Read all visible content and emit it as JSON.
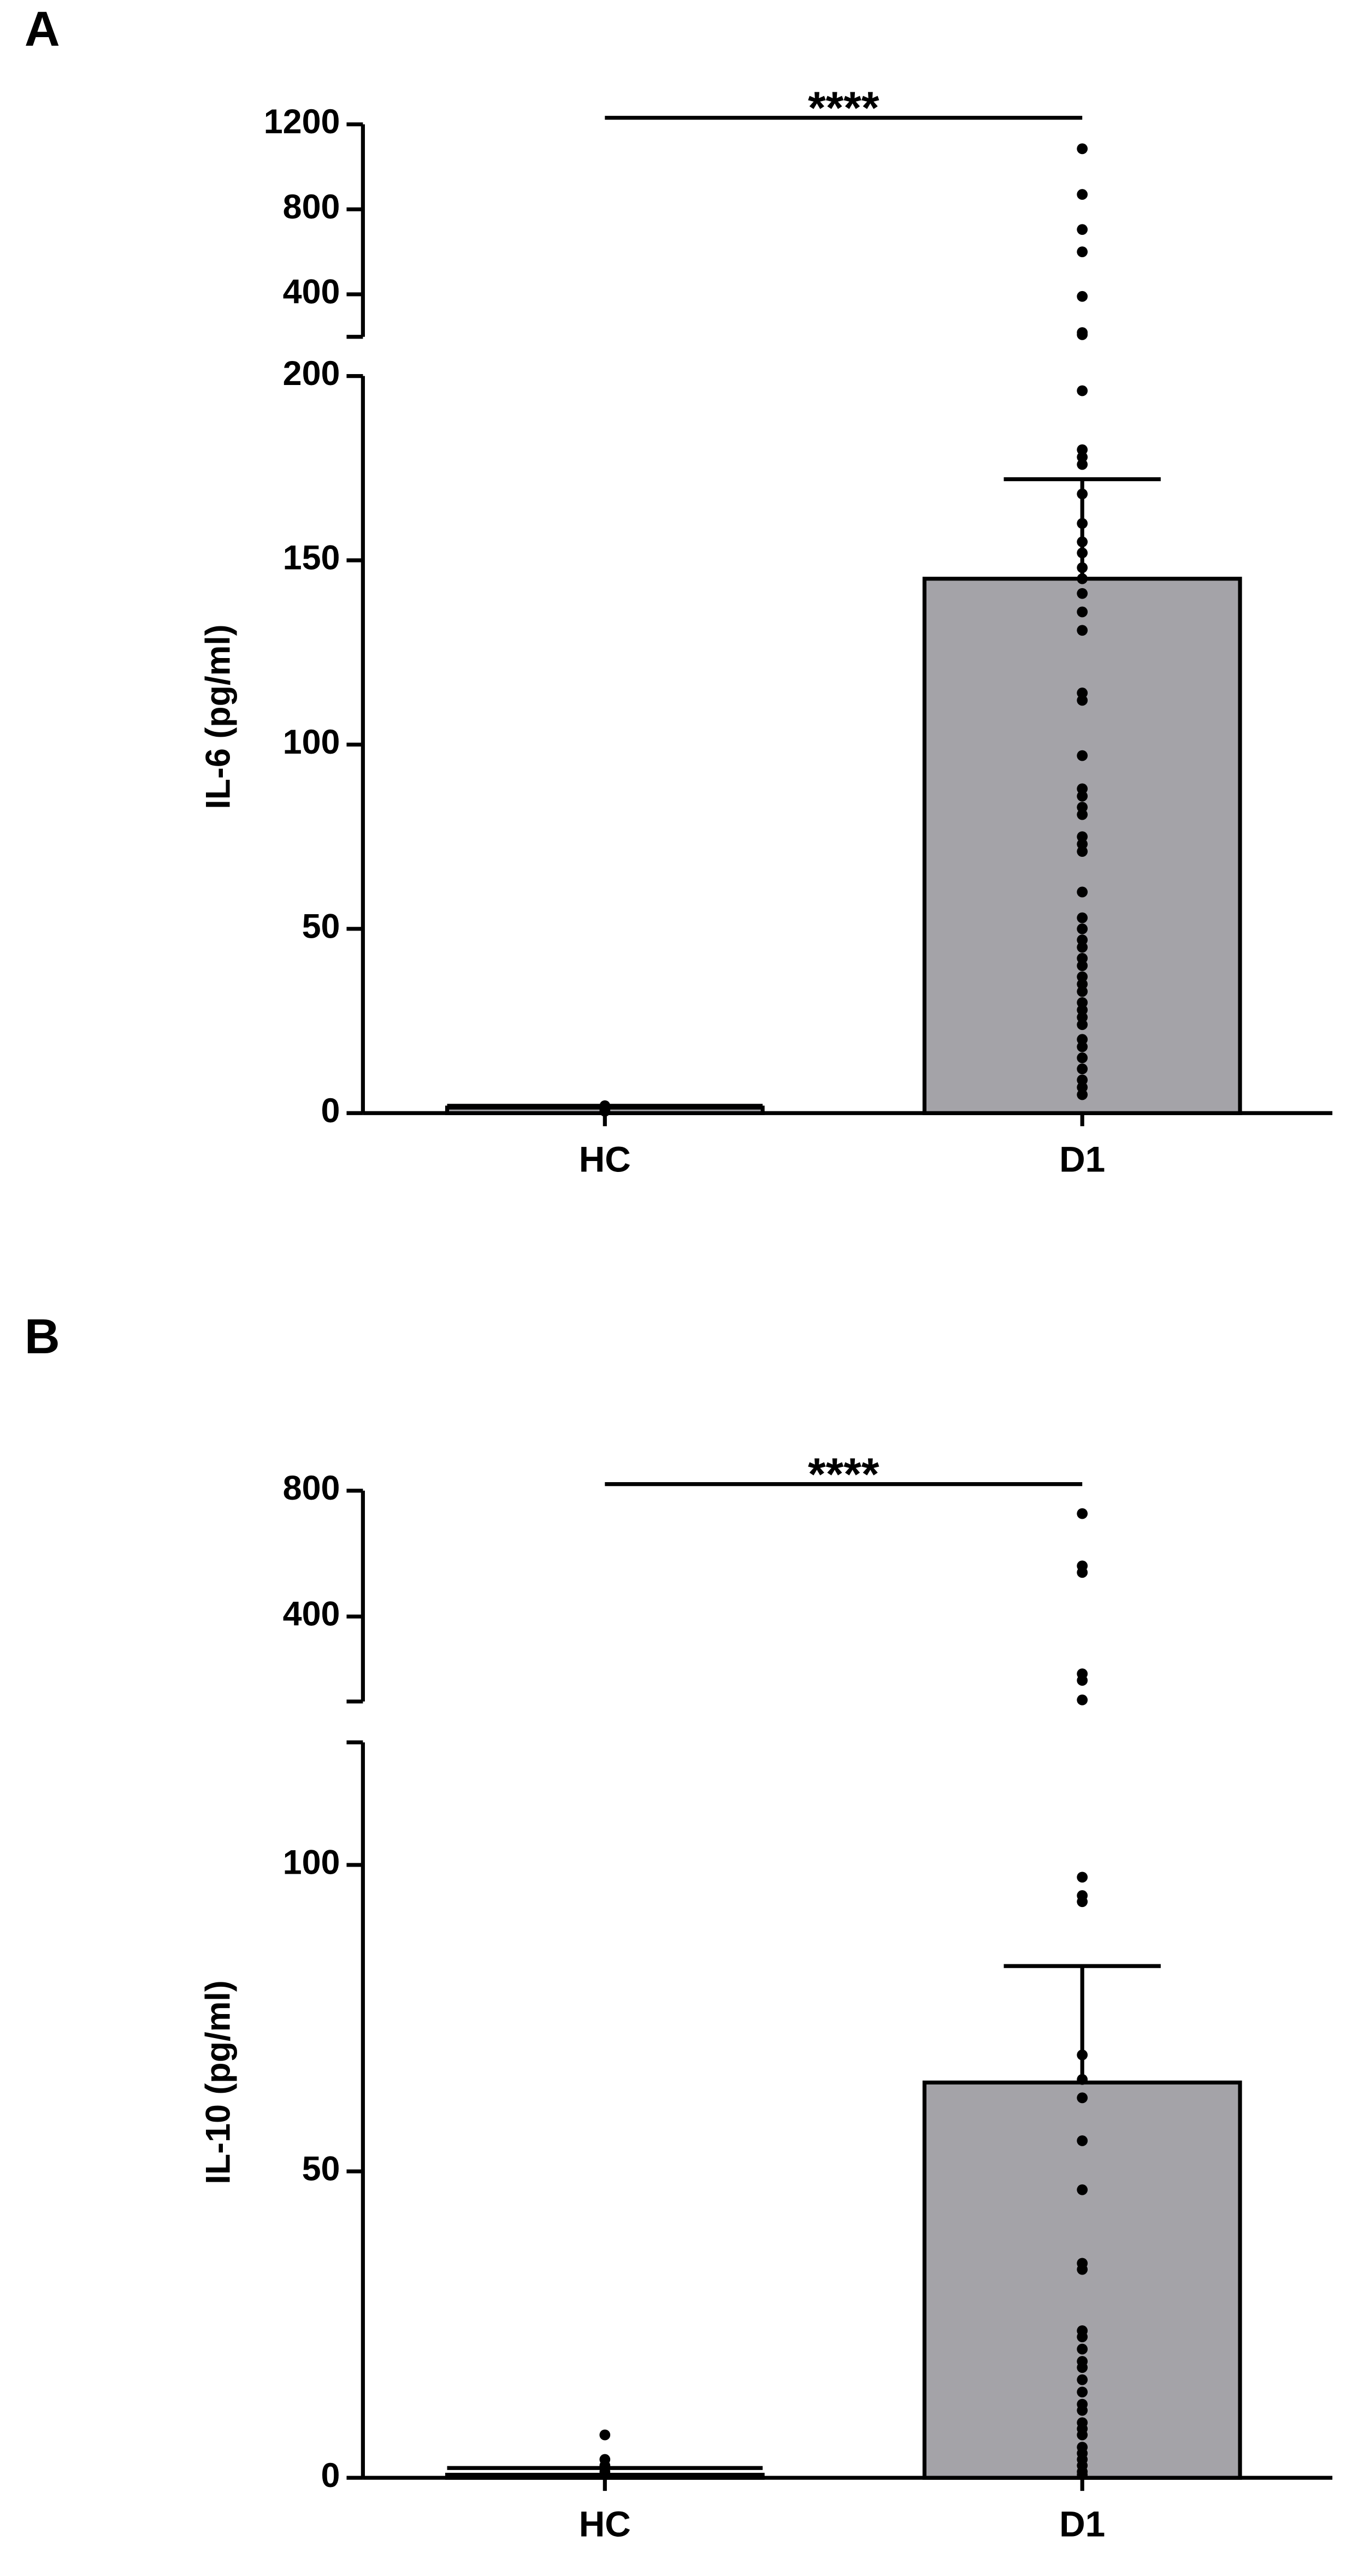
{
  "chart_data": [
    {
      "type": "bar",
      "panel": "A",
      "y_label": "IL-6 (pg/ml)",
      "annotation": "****",
      "categories": [
        "HC",
        "D1"
      ],
      "values": [
        1.5,
        145
      ],
      "errors": [
        0.5,
        27
      ],
      "color": "#a4a3a8",
      "points": [
        [
          0.5,
          1,
          2
        ],
        [
          1085,
          870,
          705,
          600,
          390,
          220,
          210,
          196,
          180,
          178,
          176,
          168,
          160,
          155,
          152,
          148,
          145,
          141,
          136,
          131,
          114,
          112,
          97,
          88,
          86,
          83,
          81,
          75,
          73,
          71,
          60,
          53,
          50,
          47,
          45,
          42,
          40,
          37,
          35,
          33,
          30,
          28,
          26,
          24,
          20,
          18,
          15,
          12,
          9,
          7,
          5
        ]
      ],
      "ylim": [
        0,
        200
      ],
      "yticks": [
        0,
        50,
        100,
        150,
        200
      ],
      "ylim_upper": [
        200,
        1200
      ],
      "yticks_upper": [
        400,
        800,
        1200
      ]
    },
    {
      "type": "bar",
      "panel": "B",
      "y_label": "IL-10 (pg/ml)",
      "annotation": "****",
      "categories": [
        "HC",
        "D1"
      ],
      "values": [
        0.5,
        64.5
      ],
      "errors": [
        1.1,
        19
      ],
      "color": "#a4a3a8",
      "points": [
        [
          7,
          3,
          2,
          1,
          0.5
        ],
        [
          727,
          561,
          540,
          218,
          197,
          135,
          98,
          95,
          94,
          69,
          65,
          62,
          55,
          47,
          35,
          34,
          24,
          23,
          21,
          19,
          18,
          16,
          14,
          12,
          11,
          9,
          8,
          7,
          5,
          4,
          3,
          2,
          1,
          0.5
        ]
      ],
      "ylim": [
        0,
        120
      ],
      "yticks": [
        0,
        50,
        100
      ],
      "ylim_upper": [
        130,
        800
      ],
      "yticks_upper": [
        400,
        800
      ]
    }
  ]
}
